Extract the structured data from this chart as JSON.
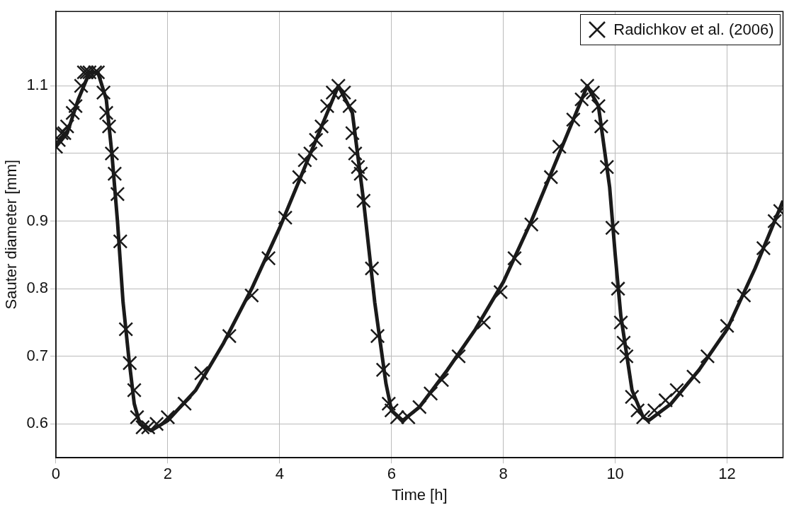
{
  "chart_data": {
    "type": "line",
    "xlabel": "Time [h]",
    "ylabel": "Sauter diameter [mm]",
    "xlim": [
      0,
      13
    ],
    "xticks": [
      0,
      2,
      4,
      6,
      8,
      10,
      12
    ],
    "ylim": [
      0.55,
      1.21
    ],
    "yticks": [
      0.6,
      0.7,
      0.8,
      0.9,
      {
        "value": 1.0,
        "label": null
      },
      1.1
    ],
    "grid": true,
    "legend": "top right",
    "series": [
      {
        "type": "line",
        "color": "#1a1a1a",
        "marker": "none",
        "line_style": "solid",
        "x": [
          0,
          0.2,
          0.4,
          0.6,
          0.75,
          0.9,
          1.0,
          1.1,
          1.2,
          1.3,
          1.4,
          1.5,
          1.7,
          2.0,
          2.5,
          3.0,
          3.5,
          4.0,
          4.5,
          4.8,
          5.05,
          5.3,
          5.5,
          5.7,
          5.9,
          6.0,
          6.2,
          6.5,
          7.0,
          7.5,
          8.0,
          8.5,
          9.0,
          9.3,
          9.5,
          9.7,
          9.9,
          10.0,
          10.1,
          10.3,
          10.5,
          10.6,
          11.0,
          11.5,
          12.0,
          12.5,
          13.0
        ],
        "values": [
          1.01,
          1.03,
          1.08,
          1.12,
          1.12,
          1.08,
          1.0,
          0.9,
          0.78,
          0.7,
          0.63,
          0.6,
          0.59,
          0.605,
          0.65,
          0.72,
          0.8,
          0.89,
          0.99,
          1.05,
          1.1,
          1.06,
          0.93,
          0.78,
          0.66,
          0.62,
          0.605,
          0.625,
          0.68,
          0.74,
          0.81,
          0.9,
          1.0,
          1.06,
          1.1,
          1.07,
          0.95,
          0.85,
          0.76,
          0.65,
          0.61,
          0.605,
          0.63,
          0.68,
          0.74,
          0.83,
          0.93
        ]
      },
      {
        "type": "scatter",
        "name": "Radichkov et al. (2006)",
        "color": "#1a1a1a",
        "marker": "cross",
        "x": [
          0,
          0.05,
          0.1,
          0.15,
          0.2,
          0.3,
          0.35,
          0.45,
          0.5,
          0.55,
          0.6,
          0.7,
          0.75,
          0.85,
          0.9,
          0.95,
          1.0,
          1.05,
          1.1,
          1.15,
          1.25,
          1.32,
          1.4,
          1.45,
          1.55,
          1.65,
          1.8,
          2.0,
          2.3,
          2.6,
          3.1,
          3.5,
          3.8,
          4.1,
          4.35,
          4.45,
          4.55,
          4.65,
          4.75,
          4.85,
          4.95,
          5.05,
          5.15,
          5.25,
          5.3,
          5.35,
          5.4,
          5.45,
          5.5,
          5.65,
          5.75,
          5.85,
          5.95,
          6.0,
          6.1,
          6.3,
          6.5,
          6.7,
          6.9,
          7.2,
          7.65,
          7.95,
          8.2,
          8.5,
          8.85,
          9.0,
          9.25,
          9.4,
          9.5,
          9.6,
          9.7,
          9.75,
          9.85,
          9.95,
          10.05,
          10.1,
          10.15,
          10.2,
          10.3,
          10.4,
          10.5,
          10.7,
          10.9,
          11.1,
          11.4,
          11.65,
          12.0,
          12.3,
          12.65,
          12.85,
          12.95
        ],
        "values": [
          1.01,
          1.02,
          1.03,
          1.03,
          1.04,
          1.06,
          1.07,
          1.1,
          1.12,
          1.12,
          1.12,
          1.12,
          1.12,
          1.09,
          1.06,
          1.04,
          1.0,
          0.97,
          0.94,
          0.87,
          0.74,
          0.69,
          0.65,
          0.61,
          0.595,
          0.595,
          0.6,
          0.61,
          0.63,
          0.675,
          0.73,
          0.79,
          0.845,
          0.905,
          0.965,
          0.99,
          1.0,
          1.02,
          1.04,
          1.07,
          1.09,
          1.1,
          1.09,
          1.07,
          1.03,
          1.0,
          0.98,
          0.97,
          0.93,
          0.83,
          0.73,
          0.68,
          0.63,
          0.62,
          0.61,
          0.61,
          0.625,
          0.645,
          0.665,
          0.7,
          0.75,
          0.795,
          0.845,
          0.895,
          0.965,
          1.01,
          1.05,
          1.08,
          1.1,
          1.09,
          1.07,
          1.04,
          0.98,
          0.89,
          0.8,
          0.75,
          0.72,
          0.7,
          0.64,
          0.62,
          0.61,
          0.62,
          0.635,
          0.65,
          0.67,
          0.7,
          0.745,
          0.79,
          0.86,
          0.9,
          0.915
        ]
      }
    ]
  }
}
